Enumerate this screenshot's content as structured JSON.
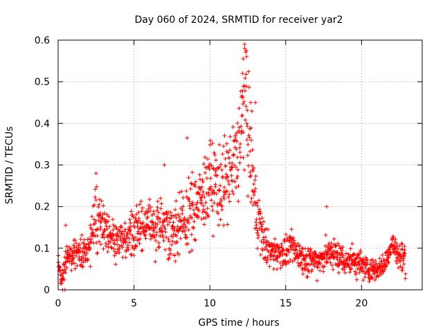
{
  "chart_data": {
    "type": "scatter",
    "title": "Day 060 of 2024, SRMTID for receiver yar2",
    "xlabel": "GPS time / hours",
    "ylabel": "SRMTID / TECUs",
    "xlim": [
      0,
      24
    ],
    "ylim": [
      0,
      0.6
    ],
    "xticks": [
      0,
      5,
      10,
      15,
      20
    ],
    "yticks": [
      0,
      0.1,
      0.2,
      0.3,
      0.4,
      0.5,
      0.6
    ],
    "xtick_labels": [
      "0",
      "5",
      "10",
      "15",
      "20"
    ],
    "ytick_labels": [
      "0",
      "0.1",
      "0.2",
      "0.3",
      "0.4",
      "0.5",
      "0.6"
    ],
    "grid": true,
    "marker": "+",
    "marker_color": "#ff0000",
    "series": [
      {
        "name": "yar2",
        "trend_x": [
          0.0,
          0.2,
          0.5,
          1.0,
          1.5,
          2.0,
          2.5,
          3.0,
          3.5,
          4.0,
          4.5,
          5.0,
          5.5,
          6.0,
          6.5,
          7.0,
          7.5,
          8.0,
          8.5,
          9.0,
          9.5,
          10.0,
          10.5,
          11.0,
          11.5,
          12.0,
          12.3,
          12.6,
          13.0,
          13.5,
          14.0,
          14.5,
          15.0,
          15.5,
          16.0,
          16.5,
          17.0,
          17.5,
          18.0,
          18.5,
          19.0,
          19.5,
          20.0,
          20.5,
          21.0,
          21.5,
          22.0,
          22.5,
          22.9
        ],
        "trend_y": [
          0.09,
          0.01,
          0.08,
          0.09,
          0.09,
          0.1,
          0.17,
          0.16,
          0.13,
          0.12,
          0.12,
          0.14,
          0.15,
          0.16,
          0.14,
          0.16,
          0.14,
          0.15,
          0.17,
          0.2,
          0.22,
          0.26,
          0.25,
          0.26,
          0.28,
          0.36,
          0.46,
          0.36,
          0.2,
          0.12,
          0.09,
          0.09,
          0.09,
          0.1,
          0.08,
          0.07,
          0.07,
          0.08,
          0.09,
          0.08,
          0.07,
          0.07,
          0.06,
          0.05,
          0.05,
          0.06,
          0.11,
          0.08,
          0.07
        ],
        "spread_y": [
          0.03,
          0.01,
          0.03,
          0.03,
          0.03,
          0.04,
          0.06,
          0.05,
          0.04,
          0.04,
          0.04,
          0.05,
          0.05,
          0.05,
          0.05,
          0.06,
          0.05,
          0.06,
          0.07,
          0.07,
          0.07,
          0.08,
          0.08,
          0.08,
          0.1,
          0.12,
          0.12,
          0.12,
          0.08,
          0.04,
          0.03,
          0.03,
          0.03,
          0.03,
          0.03,
          0.03,
          0.03,
          0.03,
          0.03,
          0.03,
          0.03,
          0.03,
          0.03,
          0.02,
          0.02,
          0.02,
          0.03,
          0.03,
          0.03
        ],
        "notable_points": [
          {
            "x": 0.3,
            "y": 0.0
          },
          {
            "x": 0.45,
            "y": 0.0
          },
          {
            "x": 0.5,
            "y": 0.155
          },
          {
            "x": 2.5,
            "y": 0.28
          },
          {
            "x": 7.0,
            "y": 0.3
          },
          {
            "x": 8.5,
            "y": 0.365
          },
          {
            "x": 12.2,
            "y": 0.555
          },
          {
            "x": 12.3,
            "y": 0.58
          },
          {
            "x": 12.4,
            "y": 0.575
          },
          {
            "x": 12.15,
            "y": 0.52
          },
          {
            "x": 13.0,
            "y": 0.45
          },
          {
            "x": 17.7,
            "y": 0.2
          },
          {
            "x": 20.5,
            "y": 0.02
          }
        ]
      }
    ]
  }
}
